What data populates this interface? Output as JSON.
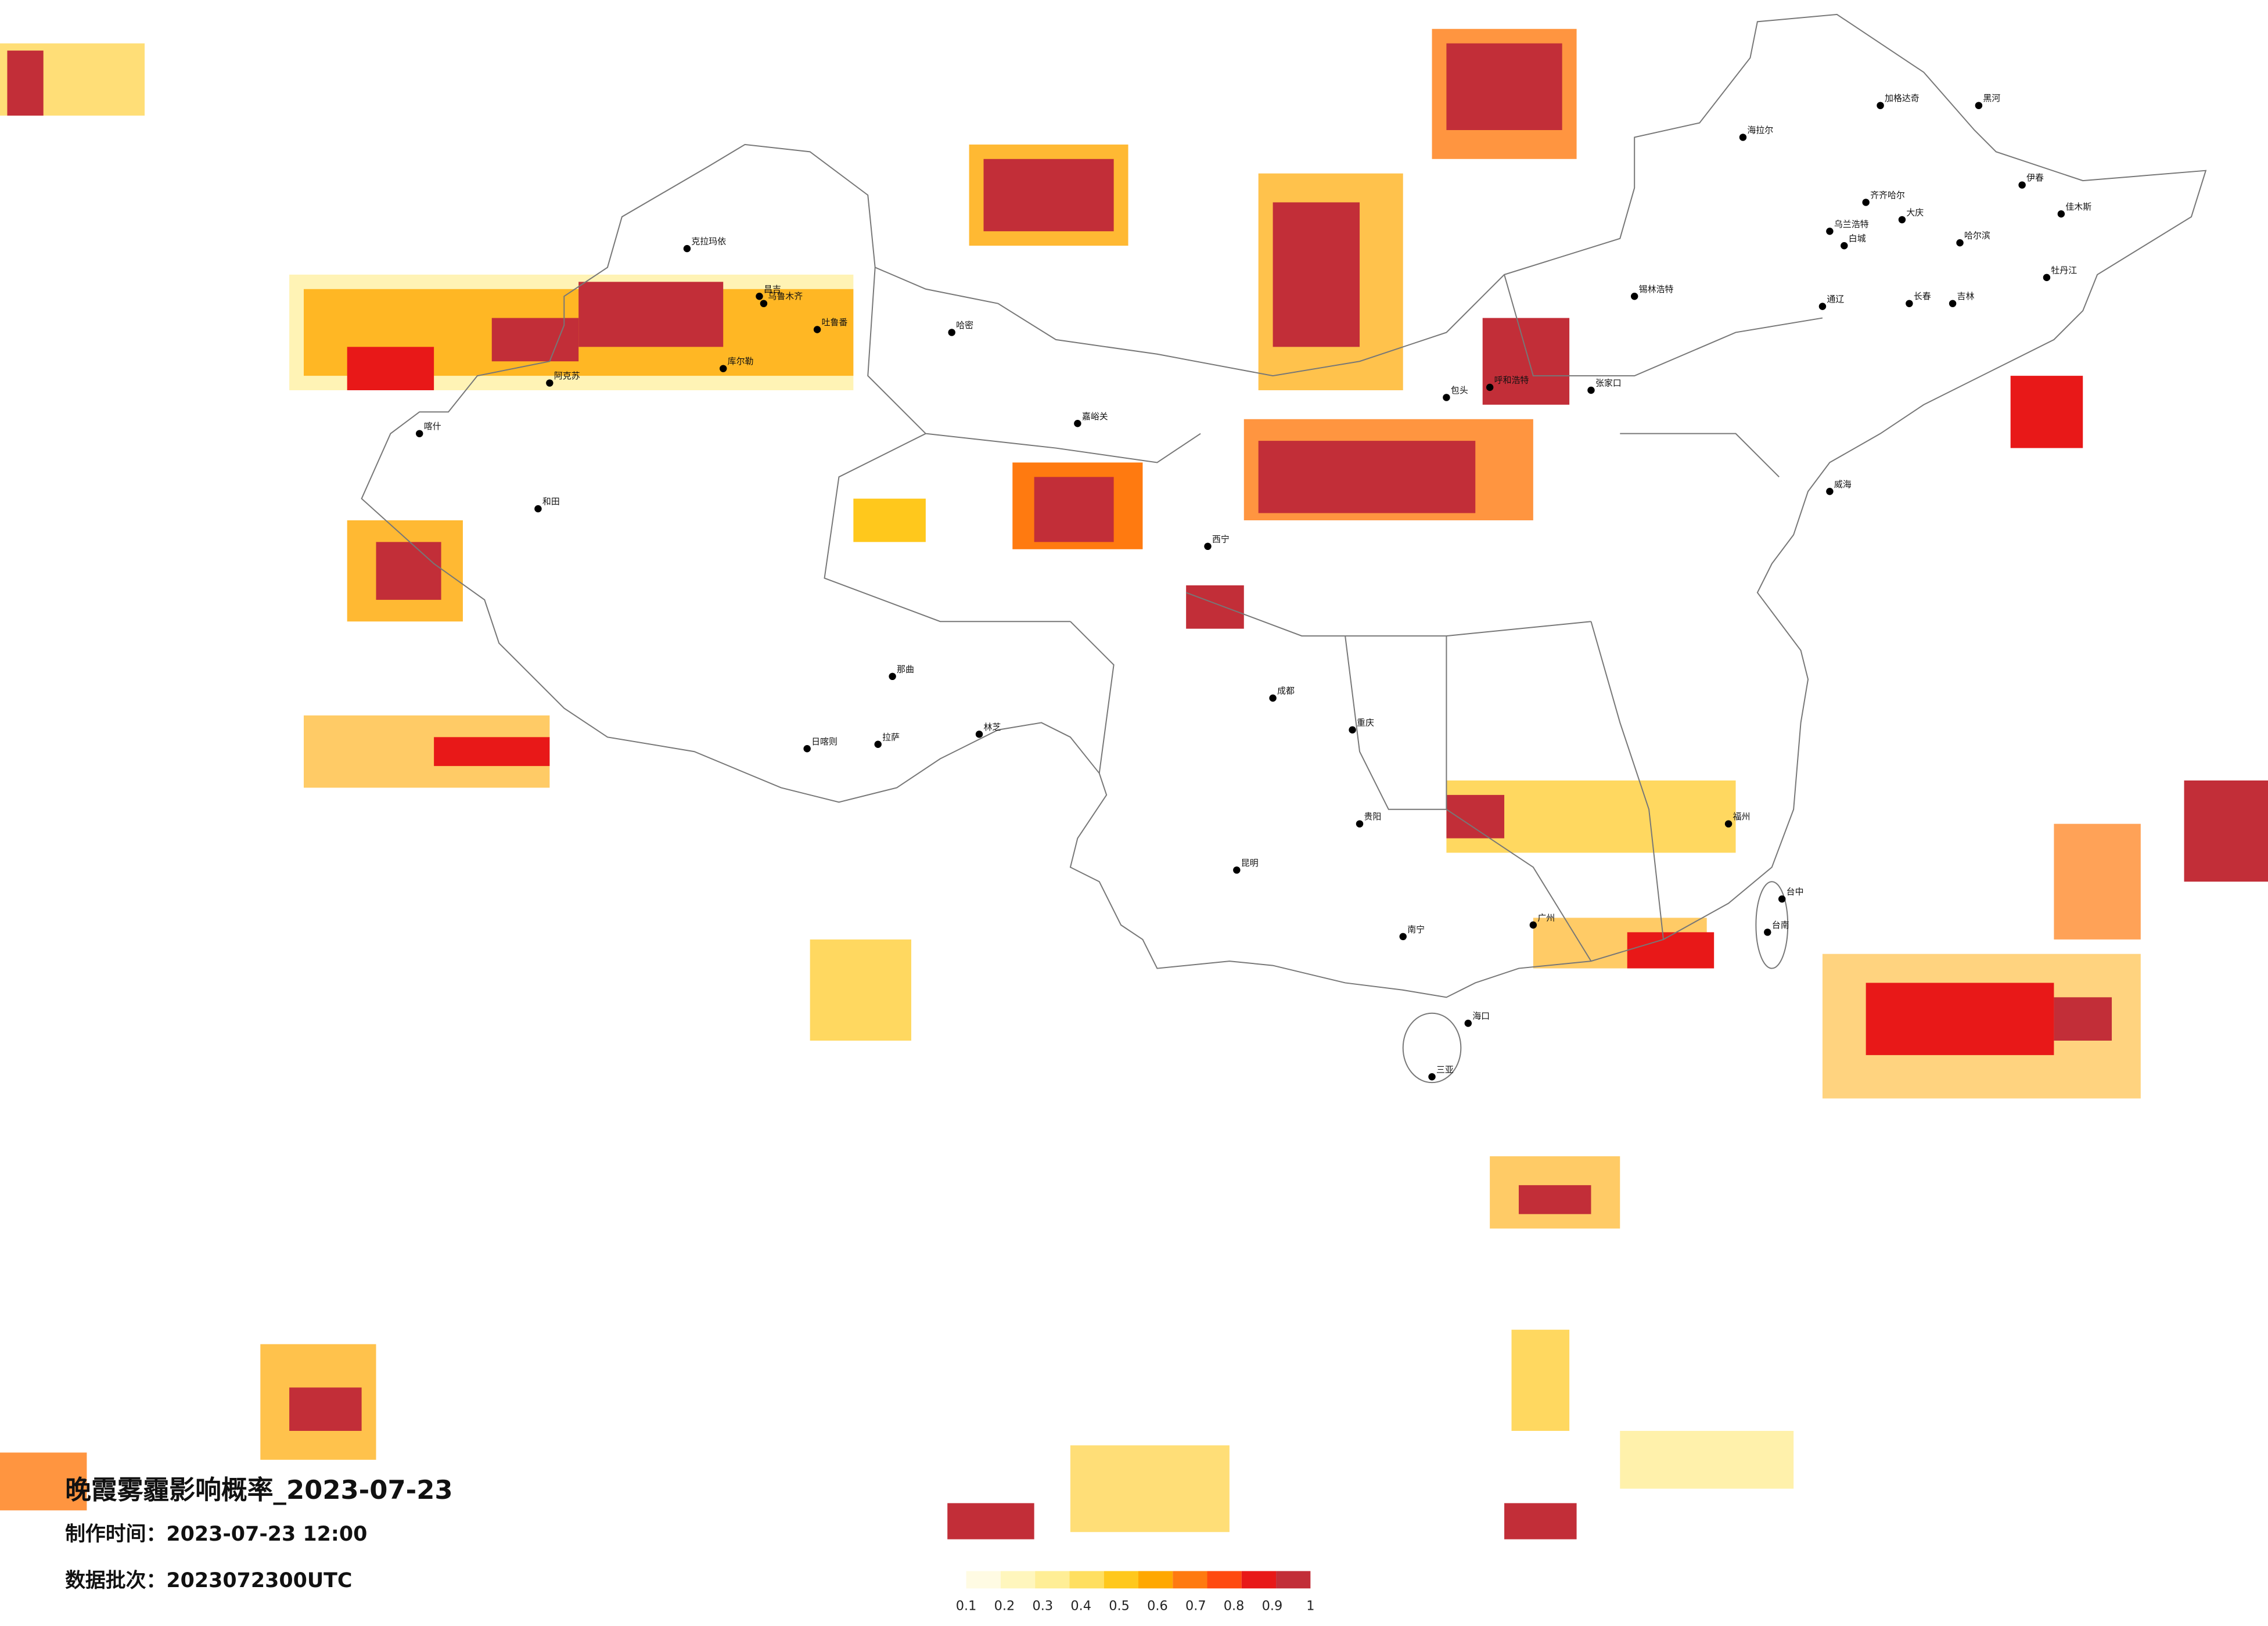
{
  "title": "晚霞雾霾影响概率_2023-07-23",
  "produced": "制作时间：2023-07-23 12:00",
  "batch": "数据批次：2023072300UTC",
  "legend": {
    "colors": [
      "#fffbe3",
      "#fff6bd",
      "#ffee96",
      "#ffdf60",
      "#ffc81c",
      "#ffa800",
      "#ff7a10",
      "#ff4a10",
      "#e81818",
      "#c22e38"
    ],
    "ticks": [
      0.1,
      0.2,
      0.3,
      0.4,
      0.5,
      0.6,
      0.7,
      0.8,
      0.9,
      1
    ]
  },
  "cities": [
    "乌鲁木齐",
    "克拉玛依",
    "哈密",
    "库尔勒",
    "阿克苏",
    "和田",
    "喀什",
    "吐鲁番",
    "昌吉",
    "嘉峪关",
    "拉萨",
    "日喀则",
    "那曲",
    "林芝",
    "西宁",
    "海拉尔",
    "加格达奇",
    "黑河",
    "齐齐哈尔",
    "大庆",
    "哈尔滨",
    "伊春",
    "佳木斯",
    "牡丹江",
    "长春",
    "吉林",
    "锡林浩特",
    "呼和浩特",
    "包头",
    "张家口",
    "成都",
    "重庆",
    "贵阳",
    "昆明",
    "南宁",
    "广州",
    "福州",
    "台中",
    "台南",
    "海口",
    "三亚",
    "乌兰浩特",
    "白城",
    "通辽",
    "威海"
  ]
}
